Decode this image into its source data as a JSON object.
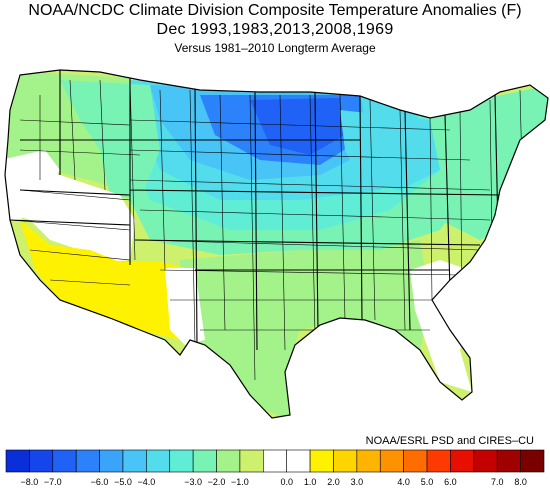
{
  "title": {
    "line1": "NOAA/NCDC Climate Division Composite Temperature Anomalies (F)",
    "line2": "Dec   1993,1983,2013,2008,1969",
    "line3": "Versus 1981–2010 Longterm Average"
  },
  "credit": "NOAA/ESRL PSD and CIRES–CU",
  "legend": {
    "ticks": [
      "−8.0",
      "−7.0",
      "−6.0",
      "−5.0",
      "−4.0",
      "−3.0",
      "−2.0",
      "−1.0",
      "0.0",
      "1.0",
      "2.0",
      "3.0",
      "4.0",
      "5.0",
      "6.0",
      "7.0",
      "8.0"
    ],
    "colors": [
      "#0a2fd8",
      "#1546ec",
      "#1f62f5",
      "#2b82fb",
      "#3aa4fb",
      "#49c4f6",
      "#53dcec",
      "#5fedd6",
      "#78f3b4",
      "#a3f28a",
      "#cdf06d",
      "#ffffff",
      "#ffffff",
      "#fff200",
      "#ffd500",
      "#ffb400",
      "#ff9200",
      "#ff6c00",
      "#ff3a00",
      "#e60f00",
      "#c40000",
      "#a00000",
      "#7a0000"
    ]
  },
  "map_regions": [
    {
      "id": "northern-plains-upper-midwest",
      "anomaly": -5.5,
      "color": "#1f62f5"
    },
    {
      "id": "northern-rockies-central-plains",
      "anomaly": -3.5,
      "color": "#49c4f6"
    },
    {
      "id": "great-lakes-ohio-valley",
      "anomaly": -3.0,
      "color": "#53dcec"
    },
    {
      "id": "pacific-northwest",
      "anomaly": -1.5,
      "color": "#a3f28a"
    },
    {
      "id": "southern-plains-mississippi-valley",
      "anomaly": -1.0,
      "color": "#cdf06d"
    },
    {
      "id": "great-basin-california",
      "anomaly": 0.0,
      "color": "#ffffff"
    },
    {
      "id": "desert-southwest",
      "anomaly": 1.0,
      "color": "#fff200"
    },
    {
      "id": "southeast-florida",
      "anomaly": 0.0,
      "color": "#ffffff"
    }
  ]
}
